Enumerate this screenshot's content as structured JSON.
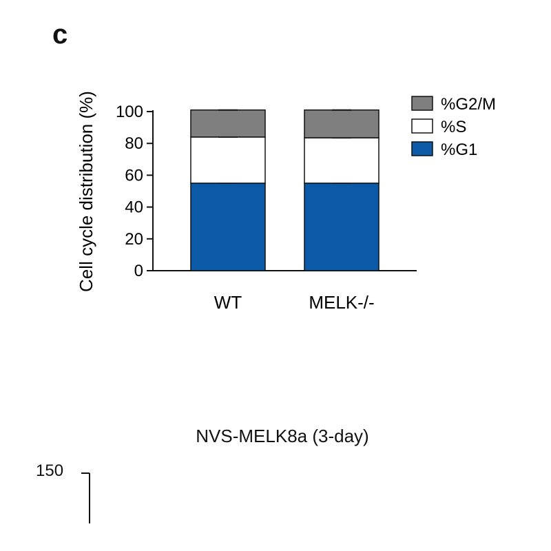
{
  "panel_label": "c",
  "chart_data": {
    "type": "bar",
    "stacked": true,
    "categories": [
      "WT",
      "MELK-/-"
    ],
    "series": [
      {
        "name": "%G1",
        "values": [
          55,
          55
        ],
        "color": "#0a5aa8"
      },
      {
        "name": "%S",
        "values": [
          29,
          28.5
        ],
        "color": "#ffffff"
      },
      {
        "name": "%G2/M",
        "values": [
          17,
          17.5
        ],
        "color": "#7f7f7f"
      }
    ],
    "legend_order": [
      "%G2/M",
      "%S",
      "%G1"
    ],
    "legend_position": "top-right",
    "title": "",
    "xlabel": "",
    "ylabel": "Cell cycle distribution (%)",
    "ylim": [
      0,
      100
    ],
    "yticks": [
      "0",
      "20",
      "40",
      "60",
      "80",
      "100"
    ],
    "grid": false
  },
  "next_panel": {
    "title": "NVS-MELK8a (3-day)",
    "ytick_top": "150"
  }
}
